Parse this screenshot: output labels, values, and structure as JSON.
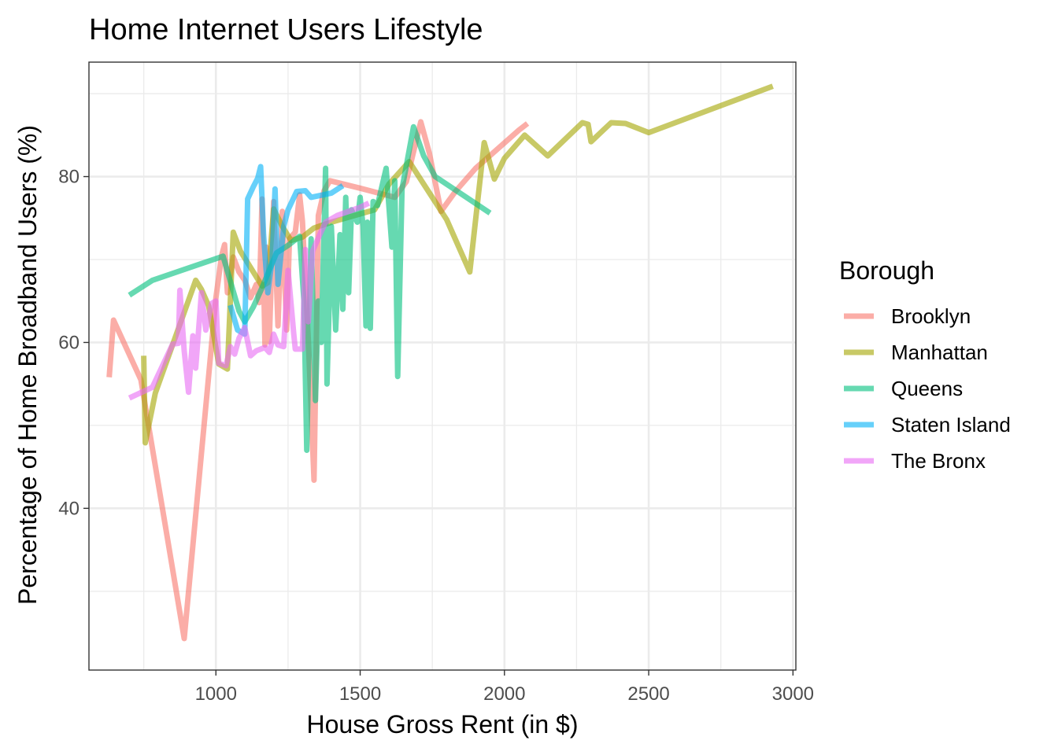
{
  "chart_data": {
    "type": "line",
    "title": "Home Internet Users Lifestyle",
    "xlabel": "House Gross Rent (in $)",
    "ylabel": "Percentage of Home Broadband Users (%)",
    "xlim": [
      560,
      3010
    ],
    "ylim": [
      20.5,
      93.8
    ],
    "x_major_ticks": [
      1000,
      1500,
      2000,
      2500,
      3000
    ],
    "x_minor_ticks": [
      750,
      1250,
      1750,
      2250,
      2750
    ],
    "y_major_ticks": [
      40,
      60,
      80
    ],
    "y_minor_ticks": [
      30,
      50,
      70,
      90
    ],
    "grid": true,
    "legend": {
      "title": "Borough",
      "position": "right"
    },
    "series": [
      {
        "name": "Brooklyn",
        "color": "#F8766D",
        "points": [
          [
            630,
            55.8
          ],
          [
            645,
            62.7
          ],
          [
            740,
            55.5
          ],
          [
            890,
            24.3
          ],
          [
            1000,
            65.4
          ],
          [
            1020,
            70.5
          ],
          [
            1030,
            71.8
          ],
          [
            1040,
            66.0
          ],
          [
            1060,
            70.3
          ],
          [
            1080,
            68.5
          ],
          [
            1100,
            67.5
          ],
          [
            1120,
            65.4
          ],
          [
            1140,
            67.0
          ],
          [
            1150,
            64.8
          ],
          [
            1160,
            77.3
          ],
          [
            1170,
            59.7
          ],
          [
            1175,
            71.5
          ],
          [
            1185,
            60.1
          ],
          [
            1200,
            77.0
          ],
          [
            1215,
            62.0
          ],
          [
            1230,
            75.8
          ],
          [
            1245,
            61.5
          ],
          [
            1255,
            72.5
          ],
          [
            1275,
            73.3
          ],
          [
            1290,
            77.8
          ],
          [
            1300,
            74.6
          ],
          [
            1320,
            60.4
          ],
          [
            1340,
            43.4
          ],
          [
            1355,
            75.3
          ],
          [
            1375,
            78.3
          ],
          [
            1395,
            79.5
          ],
          [
            1500,
            78.6
          ],
          [
            1620,
            77.5
          ],
          [
            1660,
            79.4
          ],
          [
            1710,
            86.6
          ],
          [
            1740,
            82.8
          ],
          [
            1780,
            75.8
          ],
          [
            1830,
            78.2
          ],
          [
            1900,
            81.0
          ],
          [
            2050,
            85.6
          ],
          [
            2080,
            86.4
          ]
        ]
      },
      {
        "name": "Manhattan",
        "color": "#A3A500",
        "points": [
          [
            750,
            58.4
          ],
          [
            755,
            47.9
          ],
          [
            790,
            53.9
          ],
          [
            930,
            67.5
          ],
          [
            950,
            66.4
          ],
          [
            975,
            64.4
          ],
          [
            1010,
            57.4
          ],
          [
            1040,
            56.8
          ],
          [
            1060,
            73.3
          ],
          [
            1085,
            71.0
          ],
          [
            1160,
            66.8
          ],
          [
            1180,
            67.2
          ],
          [
            1200,
            76.1
          ],
          [
            1230,
            74.0
          ],
          [
            1260,
            72.3
          ],
          [
            1300,
            72.7
          ],
          [
            1340,
            73.8
          ],
          [
            1400,
            74.5
          ],
          [
            1450,
            75.0
          ],
          [
            1550,
            76.0
          ],
          [
            1600,
            79.1
          ],
          [
            1670,
            81.8
          ],
          [
            1800,
            74.8
          ],
          [
            1880,
            68.5
          ],
          [
            1930,
            84.1
          ],
          [
            1965,
            79.7
          ],
          [
            2000,
            82.2
          ],
          [
            2070,
            85.0
          ],
          [
            2150,
            82.5
          ],
          [
            2270,
            86.5
          ],
          [
            2290,
            86.3
          ],
          [
            2300,
            84.2
          ],
          [
            2370,
            86.5
          ],
          [
            2420,
            86.4
          ],
          [
            2500,
            85.3
          ],
          [
            2930,
            90.9
          ]
        ]
      },
      {
        "name": "Queens",
        "color": "#00BF7D",
        "points": [
          [
            700,
            65.7
          ],
          [
            780,
            67.5
          ],
          [
            1025,
            70.4
          ],
          [
            1080,
            63.8
          ],
          [
            1100,
            62.5
          ],
          [
            1130,
            64.3
          ],
          [
            1160,
            66.6
          ],
          [
            1210,
            70.8
          ],
          [
            1250,
            71.7
          ],
          [
            1290,
            72.8
          ],
          [
            1305,
            65.0
          ],
          [
            1315,
            47.0
          ],
          [
            1330,
            72.5
          ],
          [
            1345,
            53.0
          ],
          [
            1355,
            65.0
          ],
          [
            1365,
            60.0
          ],
          [
            1380,
            81.0
          ],
          [
            1385,
            55.0
          ],
          [
            1400,
            74.0
          ],
          [
            1415,
            61.5
          ],
          [
            1430,
            73.0
          ],
          [
            1440,
            64.0
          ],
          [
            1450,
            77.5
          ],
          [
            1460,
            66.0
          ],
          [
            1470,
            76.0
          ],
          [
            1490,
            74.5
          ],
          [
            1500,
            77.5
          ],
          [
            1510,
            74.0
          ],
          [
            1520,
            62.0
          ],
          [
            1525,
            74.5
          ],
          [
            1535,
            61.7
          ],
          [
            1545,
            77.0
          ],
          [
            1560,
            76.5
          ],
          [
            1590,
            81.0
          ],
          [
            1610,
            71.5
          ],
          [
            1620,
            79.5
          ],
          [
            1630,
            55.9
          ],
          [
            1645,
            78.5
          ],
          [
            1685,
            86.0
          ],
          [
            1720,
            82.5
          ],
          [
            1760,
            80.0
          ],
          [
            1950,
            75.6
          ]
        ]
      },
      {
        "name": "Staten Island",
        "color": "#00B0F6",
        "points": [
          [
            1050,
            64.5
          ],
          [
            1075,
            61.5
          ],
          [
            1100,
            61.0
          ],
          [
            1110,
            77.3
          ],
          [
            1130,
            78.8
          ],
          [
            1145,
            79.8
          ],
          [
            1155,
            81.2
          ],
          [
            1165,
            73.0
          ],
          [
            1180,
            66.0
          ],
          [
            1195,
            70.0
          ],
          [
            1205,
            78.5
          ],
          [
            1215,
            67.0
          ],
          [
            1235,
            74.0
          ],
          [
            1250,
            76.0
          ],
          [
            1280,
            78.2
          ],
          [
            1310,
            78.3
          ],
          [
            1330,
            77.5
          ],
          [
            1400,
            78.0
          ],
          [
            1440,
            78.9
          ]
        ]
      },
      {
        "name": "The Bronx",
        "color": "#E76BF3",
        "points": [
          [
            700,
            53.3
          ],
          [
            780,
            54.6
          ],
          [
            850,
            59.8
          ],
          [
            870,
            59.9
          ],
          [
            875,
            66.3
          ],
          [
            890,
            59.0
          ],
          [
            905,
            54.0
          ],
          [
            920,
            60.8
          ],
          [
            930,
            56.9
          ],
          [
            950,
            66.0
          ],
          [
            965,
            61.5
          ],
          [
            985,
            64.7
          ],
          [
            1000,
            65.0
          ],
          [
            1010,
            57.5
          ],
          [
            1035,
            57.2
          ],
          [
            1050,
            59.5
          ],
          [
            1065,
            58.6
          ],
          [
            1080,
            60.5
          ],
          [
            1100,
            61.8
          ],
          [
            1120,
            58.4
          ],
          [
            1140,
            59.0
          ],
          [
            1170,
            59.4
          ],
          [
            1185,
            58.8
          ],
          [
            1200,
            61.0
          ],
          [
            1215,
            59.7
          ],
          [
            1235,
            59.5
          ],
          [
            1250,
            68.7
          ],
          [
            1270,
            61.0
          ],
          [
            1275,
            59.2
          ],
          [
            1300,
            59.2
          ],
          [
            1310,
            71.2
          ],
          [
            1320,
            62.5
          ],
          [
            1335,
            71.0
          ],
          [
            1360,
            73.0
          ],
          [
            1380,
            74.5
          ],
          [
            1420,
            75.3
          ],
          [
            1500,
            76.3
          ],
          [
            1530,
            76.8
          ]
        ]
      }
    ]
  }
}
